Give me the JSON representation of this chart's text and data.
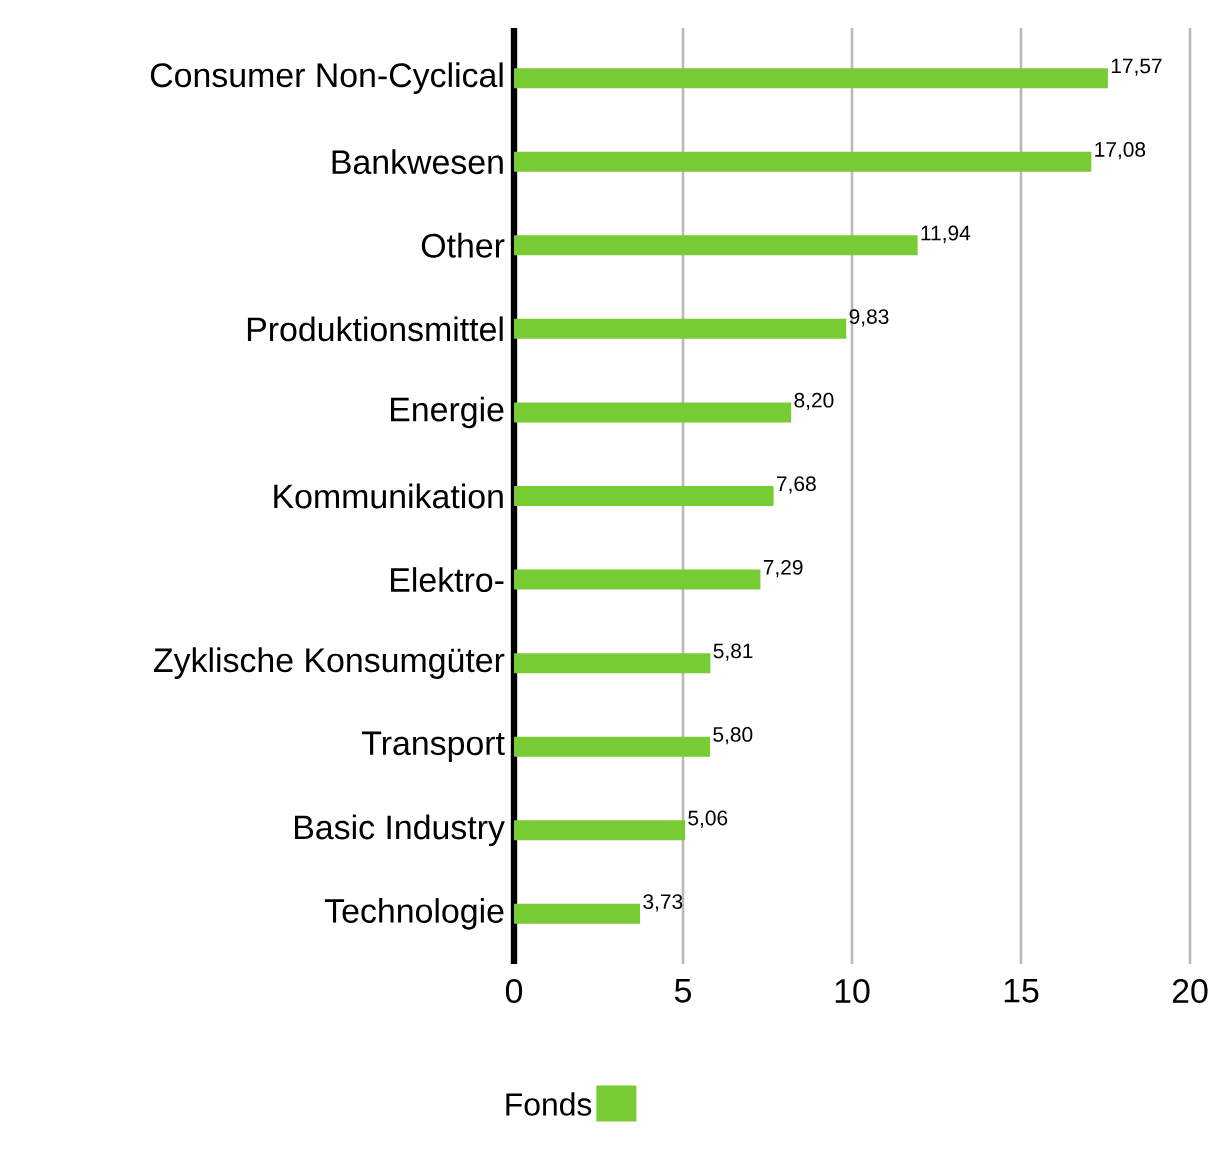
{
  "chart_data": {
    "type": "bar",
    "orientation": "horizontal",
    "categories": [
      "Consumer Non-Cyclical",
      "Bankwesen",
      "Other",
      "Produktionsmittel",
      "Energie",
      "Kommunikation",
      "Elektro-",
      "Zyklische Konsumgüter",
      "Transport",
      "Basic Industry",
      "Technologie"
    ],
    "series": [
      {
        "name": "Fonds",
        "color": "#77cc33",
        "values": [
          17.57,
          17.08,
          11.94,
          9.83,
          8.2,
          7.68,
          7.29,
          5.81,
          5.8,
          5.06,
          3.73
        ],
        "value_labels": [
          "17,57",
          "17,08",
          "11,94",
          "9,83",
          "8,20",
          "7,68",
          "7,29",
          "5,81",
          "5,80",
          "5,06",
          "3,73"
        ]
      }
    ],
    "xlim": [
      0,
      20
    ],
    "xticks": [
      0,
      5,
      10,
      15,
      20
    ],
    "grid": "x",
    "legend": "bottom"
  }
}
